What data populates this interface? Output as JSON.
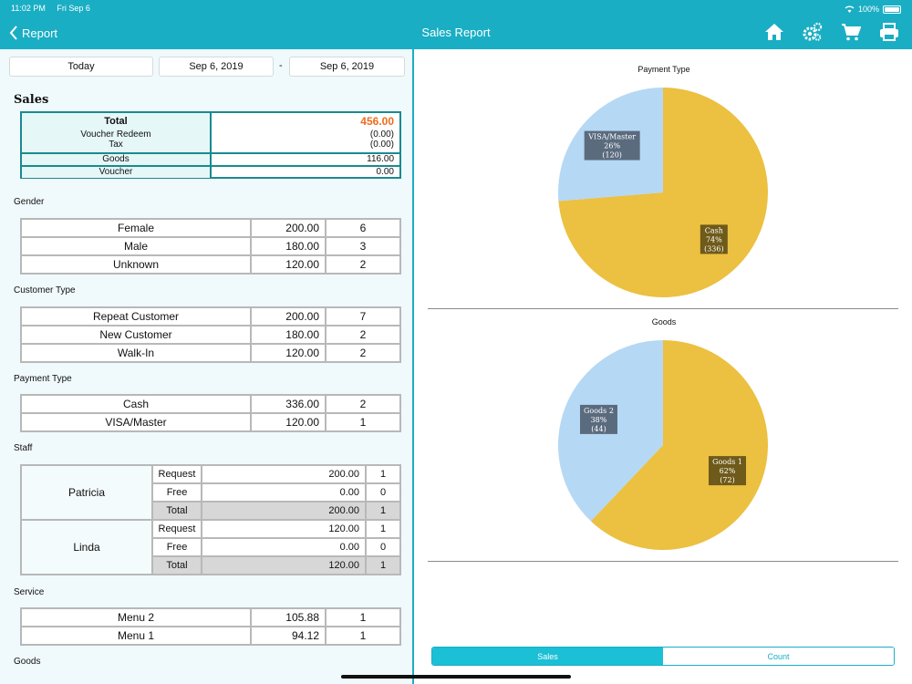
{
  "status": {
    "time": "11:02 PM",
    "date": "Fri Sep 6",
    "battery": "100%"
  },
  "nav": {
    "back_label": "Report",
    "title": "Sales Report"
  },
  "dates": {
    "today_label": "Today",
    "from": "Sep 6, 2019",
    "separator": "-",
    "to": "Sep 6, 2019"
  },
  "sales": {
    "heading": "Sales",
    "total_label": "Total",
    "total_value": "456.00",
    "voucher_redeem_label": "Voucher Redeem",
    "voucher_redeem_value": "(0.00)",
    "tax_label": "Tax",
    "tax_value": "(0.00)",
    "goods_label": "Goods",
    "goods_value": "116.00",
    "voucher_label": "Voucher",
    "voucher_value": "0.00"
  },
  "gender": {
    "label": "Gender",
    "rows": [
      {
        "name": "Female",
        "amount": "200.00",
        "count": "6"
      },
      {
        "name": "Male",
        "amount": "180.00",
        "count": "3"
      },
      {
        "name": "Unknown",
        "amount": "120.00",
        "count": "2"
      }
    ]
  },
  "customer_type": {
    "label": "Customer Type",
    "rows": [
      {
        "name": "Repeat Customer",
        "amount": "200.00",
        "count": "7"
      },
      {
        "name": "New Customer",
        "amount": "180.00",
        "count": "2"
      },
      {
        "name": "Walk-In",
        "amount": "120.00",
        "count": "2"
      }
    ]
  },
  "payment_type": {
    "label": "Payment Type",
    "rows": [
      {
        "name": "Cash",
        "amount": "336.00",
        "count": "2"
      },
      {
        "name": "VISA/Master",
        "amount": "120.00",
        "count": "1"
      }
    ]
  },
  "staff": {
    "label": "Staff",
    "members": [
      {
        "name": "Patricia",
        "rows": [
          {
            "type": "Request",
            "amount": "200.00",
            "count": "1"
          },
          {
            "type": "Free",
            "amount": "0.00",
            "count": "0"
          },
          {
            "type": "Total",
            "amount": "200.00",
            "count": "1"
          }
        ]
      },
      {
        "name": "Linda",
        "rows": [
          {
            "type": "Request",
            "amount": "120.00",
            "count": "1"
          },
          {
            "type": "Free",
            "amount": "0.00",
            "count": "0"
          },
          {
            "type": "Total",
            "amount": "120.00",
            "count": "1"
          }
        ]
      }
    ]
  },
  "service": {
    "label": "Service",
    "rows": [
      {
        "name": "Menu 2",
        "amount": "105.88",
        "count": "1"
      },
      {
        "name": "Menu 1",
        "amount": "94.12",
        "count": "1"
      }
    ]
  },
  "goods_section": {
    "label": "Goods"
  },
  "chart_data": [
    {
      "type": "pie",
      "title": "Payment Type",
      "slices": [
        {
          "label": "Cash",
          "value": 336,
          "percent": "74%",
          "amount": "(336)",
          "color": "#ecc040"
        },
        {
          "label": "VISA/Master",
          "value": 120,
          "percent": "26%",
          "amount": "(120)",
          "color": "#b5d8f5"
        }
      ]
    },
    {
      "type": "pie",
      "title": "Goods",
      "slices": [
        {
          "label": "Goods 1",
          "value": 72,
          "percent": "62%",
          "amount": "(72)",
          "color": "#ecc040"
        },
        {
          "label": "Goods 2",
          "value": 44,
          "percent": "38%",
          "amount": "(44)",
          "color": "#b5d8f5"
        }
      ]
    }
  ],
  "segment": {
    "sales_label": "Sales",
    "count_label": "Count",
    "active": "Sales"
  },
  "colors": {
    "accent": "#1aaec4",
    "total_highlight": "#ef6b1c",
    "pie_primary": "#ecc040",
    "pie_secondary": "#b5d8f5"
  }
}
